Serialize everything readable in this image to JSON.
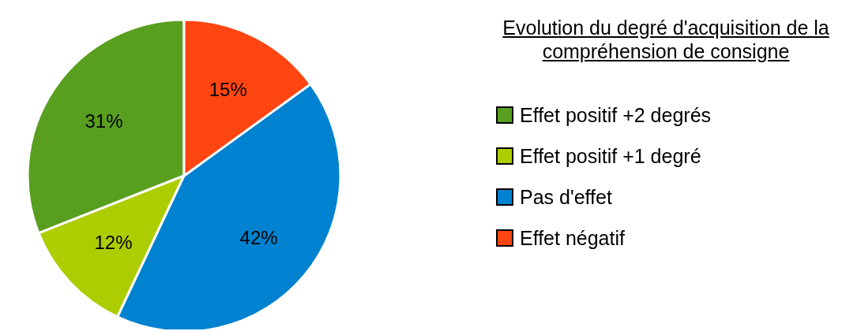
{
  "chart_data": {
    "type": "pie",
    "title": "Evolution du degré d'acquisition de la compréhension de consigne",
    "categories": [
      "Effet positif +2 degrés",
      "Effet positif +1 degré",
      "Pas d'effet",
      "Effet négatif"
    ],
    "values": [
      31,
      12,
      42,
      15
    ],
    "value_labels": [
      "31%",
      "12%",
      "42%",
      "15%"
    ],
    "colors": [
      "#589f1f",
      "#aecd00",
      "#0082d0",
      "#ff4512"
    ],
    "legend": "right"
  }
}
